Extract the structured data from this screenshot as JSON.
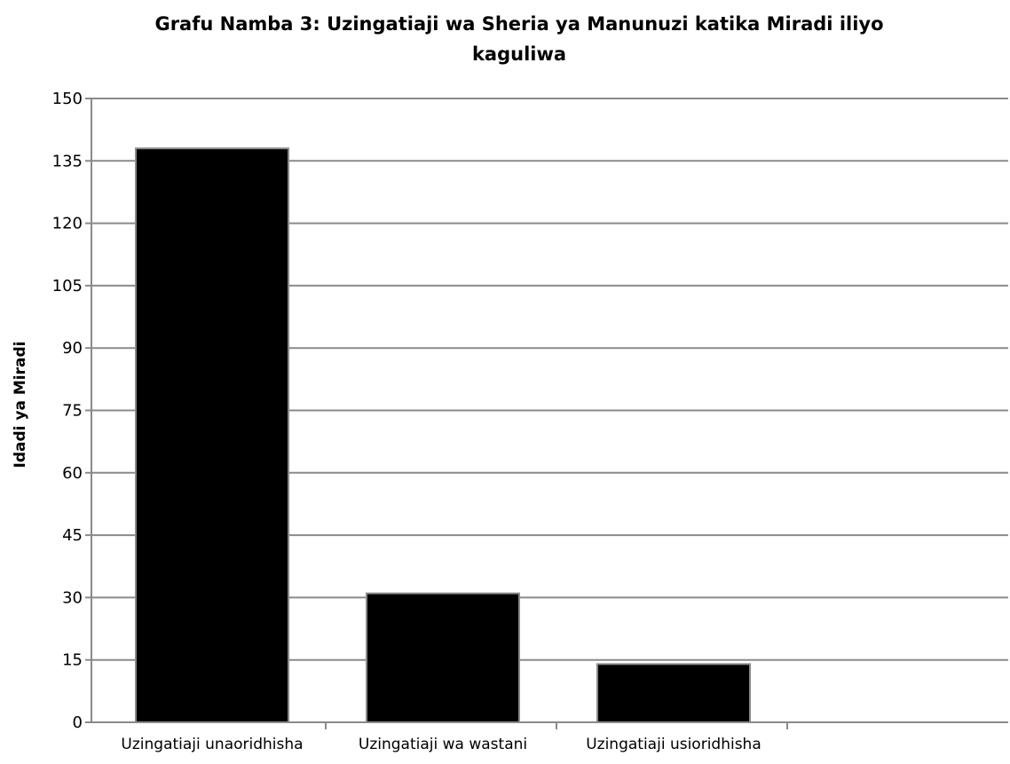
{
  "chart_data": {
    "type": "bar",
    "title_lines": [
      "Grafu Namba 3: Uzingatiaji wa Sheria ya Manunuzi katika Miradi iliyo",
      "kaguliwa"
    ],
    "xlabel": "",
    "ylabel": "Idadi ya Miradi",
    "categories": [
      "Uzingatiaji unaoridhisha",
      "Uzingatiaji wa wastani",
      "Uzingatiaji usioridhisha"
    ],
    "values": [
      138,
      31,
      14
    ],
    "ylim": [
      0,
      150
    ],
    "yticks": [
      0,
      15,
      30,
      45,
      60,
      75,
      90,
      105,
      120,
      135,
      150
    ],
    "grid": true,
    "legend": "none",
    "colors": {
      "bar": "#000000",
      "bar_edge": "#8a8a8a",
      "grid": "#8a8a8a",
      "axis": "#8a8a8a"
    }
  }
}
